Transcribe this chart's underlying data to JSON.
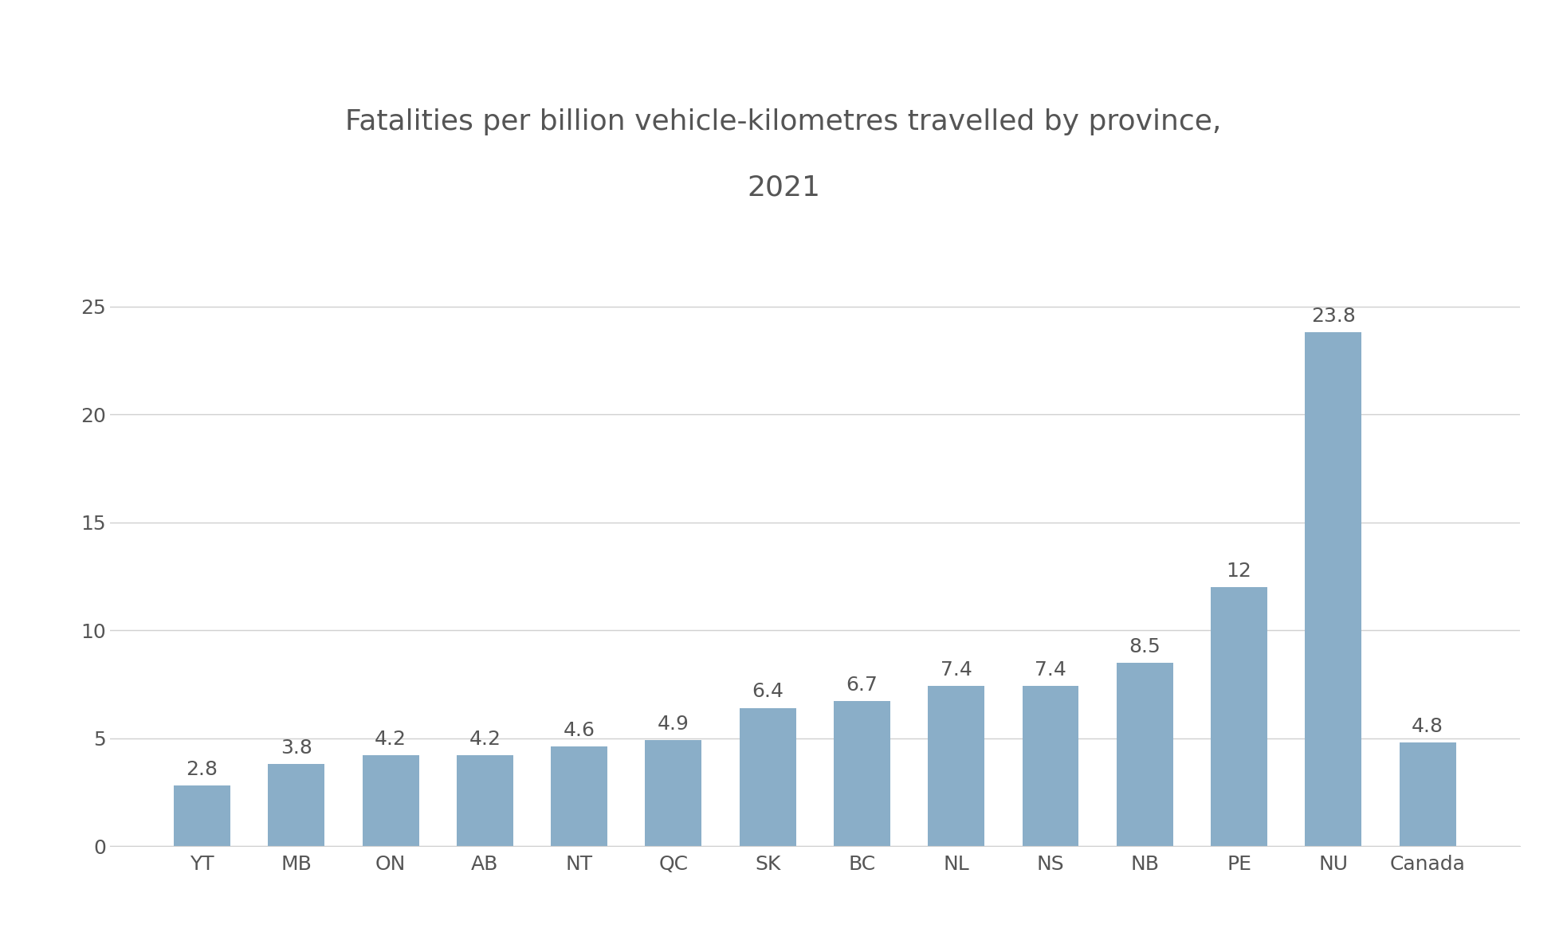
{
  "title_line1": "Fatalities per billion vehicle-kilometres travelled by province,",
  "title_line2": "2021",
  "categories": [
    "YT",
    "MB",
    "ON",
    "AB",
    "NT",
    "QC",
    "SK",
    "BC",
    "NL",
    "NS",
    "NB",
    "PE",
    "NU",
    "Canada"
  ],
  "values": [
    2.8,
    3.8,
    4.2,
    4.2,
    4.6,
    4.9,
    6.4,
    6.7,
    7.4,
    7.4,
    8.5,
    12.0,
    23.8,
    4.8
  ],
  "bar_color": "#8aaec8",
  "label_color": "#555555",
  "title_color": "#555555",
  "background_color": "#ffffff",
  "ylim": [
    0,
    27
  ],
  "yticks": [
    0,
    5,
    10,
    15,
    20,
    25
  ],
  "title_fontsize": 26,
  "tick_fontsize": 18,
  "label_fontsize": 18,
  "grid_color": "#d0d0d0",
  "figsize": [
    19.66,
    11.8
  ]
}
